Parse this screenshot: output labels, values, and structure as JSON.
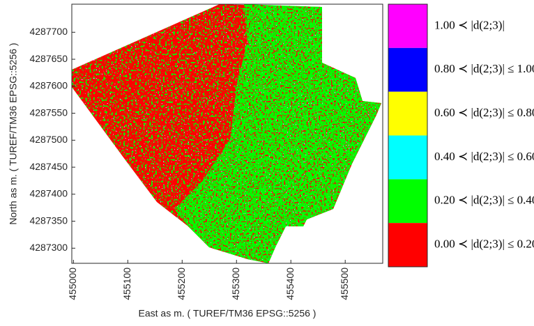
{
  "chart_data": {
    "type": "raster",
    "x_label": "East as m. ( TUREF/TM36 EPSG::5256 )",
    "y_label": "North as  m. ( TUREF/TM36 EPSG::5256 )",
    "xlim": [
      454997,
      455569
    ],
    "ylim": [
      4287272,
      4287752
    ],
    "xticks": [
      455000,
      455100,
      455200,
      455300,
      455400,
      455500
    ],
    "yticks": [
      4287300,
      4287350,
      4287400,
      4287450,
      4287500,
      4287550,
      4287600,
      4287650,
      4287700
    ],
    "legend": [
      {
        "label": "1.00 ≺ |d(2;3)|",
        "color": "#ff00ff"
      },
      {
        "label": "0.80 ≺ |d(2;3)| ≤ 1.00",
        "color": "#0000ff"
      },
      {
        "label": "0.60 ≺ |d(2;3)| ≤ 0.80",
        "color": "#ffff00"
      },
      {
        "label": "0.40 ≺ |d(2;3)| ≤ 0.60",
        "color": "#00ffff"
      },
      {
        "label": "0.20 ≺ |d(2;3)| ≤ 0.40",
        "color": "#00ff00"
      },
      {
        "label": "0.00 ≺ |d(2;3)| ≤ 0.20",
        "color": "#ff0000"
      }
    ]
  }
}
